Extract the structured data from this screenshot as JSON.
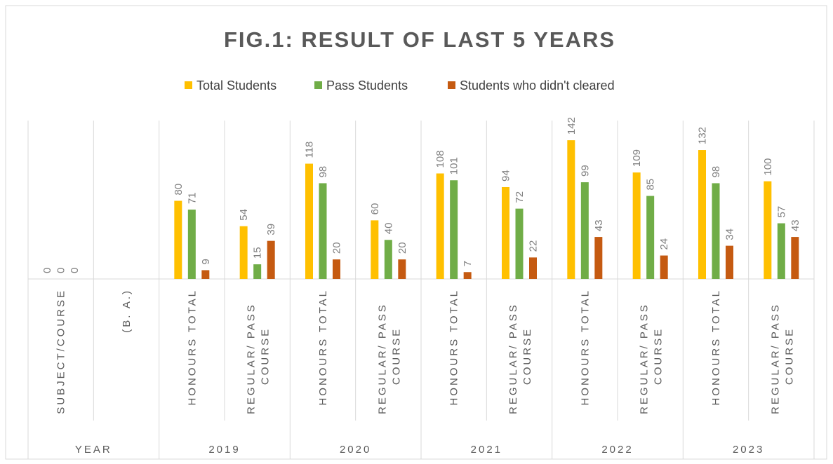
{
  "chart_data": {
    "type": "bar",
    "title": "FIG.1: RESULT OF LAST 5 YEARS",
    "categories": [
      "SUBJECT/COURSE",
      "(B. A.)",
      "HONOURS TOTAL",
      "REGULAR/ PASS COURSE",
      "HONOURS TOTAL",
      "REGULAR/ PASS COURSE",
      "HONOURS TOTAL",
      "REGULAR/ PASS COURSE",
      "HONOURS TOTAL",
      "REGULAR/ PASS COURSE",
      "HONOURS TOTAL",
      "REGULAR/ PASS COURSE"
    ],
    "groups": [
      "YEAR",
      "2019",
      "2020",
      "2021",
      "2022",
      "2023"
    ],
    "series": [
      {
        "name": "Total Students",
        "color": "#ffc000",
        "values": [
          0,
          null,
          80,
          54,
          118,
          60,
          108,
          94,
          142,
          109,
          132,
          100
        ]
      },
      {
        "name": "Pass Students",
        "color": "#70ad47",
        "values": [
          0,
          null,
          71,
          15,
          98,
          40,
          101,
          72,
          99,
          85,
          98,
          57
        ]
      },
      {
        "name": "Students who didn't cleared",
        "color": "#c55a11",
        "values": [
          0,
          null,
          9,
          39,
          20,
          20,
          7,
          22,
          43,
          24,
          34,
          43
        ]
      }
    ],
    "ylim": [
      0,
      160
    ],
    "legend": "top"
  }
}
